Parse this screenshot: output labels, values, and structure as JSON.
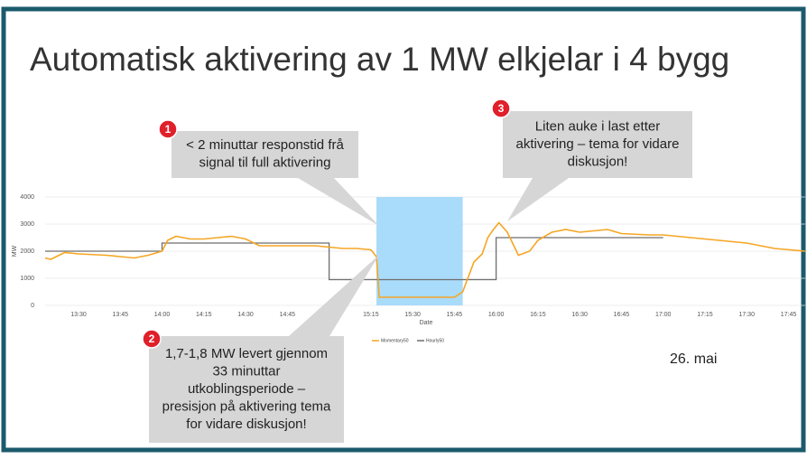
{
  "slide_title": "Automatisk aktivering av 1 MW elkjelar i 4 bygg",
  "date_note": "26. mai",
  "callouts": [
    {
      "number": "1",
      "lines": [
        "< 2 minuttar responstid frå",
        "signal til full aktivering"
      ]
    },
    {
      "number": "2",
      "lines": [
        "1,7-1,8 MW levert gjennom",
        "33 minuttar",
        "utkoblingsperiode –",
        "presisjon på aktivering tema",
        "for vidare diskusjon!"
      ]
    },
    {
      "number": "3",
      "lines": [
        "Liten auke i last etter",
        "aktivering – tema for vidare",
        "diskusjon!"
      ]
    }
  ],
  "chart_data": {
    "type": "line",
    "xlabel": "Date",
    "ylabel": "MW",
    "xlim": [
      "13:18",
      "17:51"
    ],
    "xticks": [
      "13:30",
      "13:45",
      "14:00",
      "14:15",
      "14:30",
      "14:45",
      "15:00",
      "15:15",
      "15:30",
      "15:45",
      "16:00",
      "16:15",
      "16:30",
      "16:45",
      "17:00",
      "17:15",
      "17:30",
      "17:45"
    ],
    "ylim": [
      0,
      4000
    ],
    "yticks": [
      0,
      1000,
      2000,
      3000,
      4000
    ],
    "grid": true,
    "highlight": {
      "x": [
        "15:17",
        "15:48"
      ],
      "color": "#a9dbfb"
    },
    "series": [
      {
        "name": "Momentary50",
        "color": "#f5a623",
        "x": [
          "13:18",
          "13:20",
          "13:25",
          "13:30",
          "13:40",
          "13:45",
          "13:50",
          "13:55",
          "14:00",
          "14:02",
          "14:05",
          "14:10",
          "14:15",
          "14:20",
          "14:25",
          "14:30",
          "14:35",
          "14:45",
          "14:55",
          "15:00",
          "15:05",
          "15:10",
          "15:15",
          "15:17",
          "15:18",
          "15:25",
          "15:35",
          "15:45",
          "15:48",
          "15:52",
          "15:55",
          "15:57",
          "15:59",
          "16:01",
          "16:04",
          "16:08",
          "16:12",
          "16:15",
          "16:20",
          "16:25",
          "16:30",
          "16:40",
          "16:45",
          "16:55",
          "17:00",
          "17:10",
          "17:20",
          "17:30",
          "17:40",
          "17:51"
        ],
        "values": [
          1750,
          1700,
          1950,
          1900,
          1850,
          1800,
          1750,
          1850,
          2000,
          2400,
          2550,
          2450,
          2450,
          2500,
          2550,
          2450,
          2200,
          2200,
          2200,
          2150,
          2100,
          2100,
          2050,
          1800,
          300,
          300,
          300,
          300,
          500,
          1600,
          1900,
          2500,
          2800,
          3050,
          2700,
          1850,
          2000,
          2400,
          2700,
          2800,
          2700,
          2800,
          2650,
          2600,
          2600,
          2500,
          2400,
          2300,
          2100,
          2000
        ]
      },
      {
        "name": "Hourly50",
        "color": "#6d6d6d",
        "x": [
          "13:18",
          "14:00",
          "14:00",
          "15:00",
          "15:00",
          "16:00",
          "16:00",
          "17:00"
        ],
        "values": [
          2000,
          2000,
          2300,
          2300,
          950,
          950,
          2500,
          2500
        ]
      }
    ]
  }
}
